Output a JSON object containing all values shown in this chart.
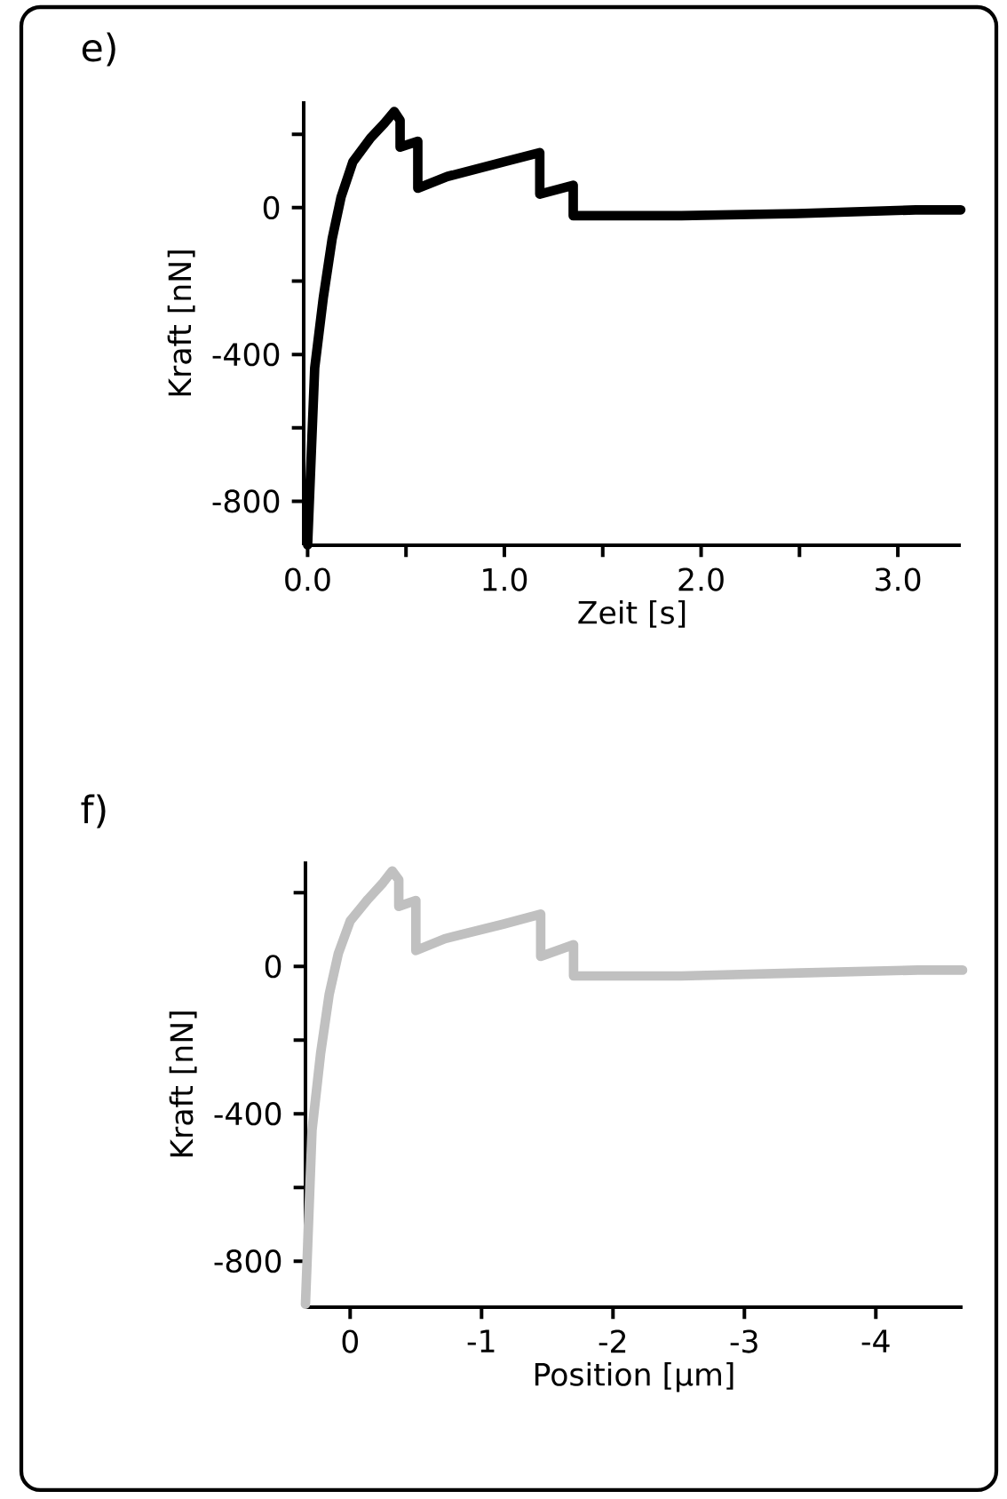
{
  "chart_data": [
    {
      "type": "line",
      "title": "e)",
      "xlabel": "Zeit [s]",
      "ylabel": "Kraft [nN]",
      "xlim": [
        -0.02,
        3.32
      ],
      "ylim": [
        -920,
        290
      ],
      "xticks": [
        {
          "value": 0,
          "label": "0.0"
        },
        {
          "value": 0.5,
          "label": null
        },
        {
          "value": 1,
          "label": "1.0"
        },
        {
          "value": 1.5,
          "label": null
        },
        {
          "value": 2,
          "label": "2.0"
        },
        {
          "value": 2.5,
          "label": null
        },
        {
          "value": 3,
          "label": "3.0"
        }
      ],
      "yticks": [
        {
          "value": 200,
          "label": null
        },
        0,
        {
          "value": -200,
          "label": null
        },
        -400,
        {
          "value": -600,
          "label": null
        },
        -800
      ],
      "series": [
        {
          "color": "#000000",
          "x": [
            0,
            0.036,
            0.08,
            0.125,
            0.17,
            0.23,
            0.32,
            0.39,
            0.44,
            0.47,
            0.47,
            0.56,
            0.56,
            0.71,
            1.0,
            1.18,
            1.18,
            1.35,
            1.35,
            1.9,
            2.49,
            3.09,
            3.32
          ],
          "values": [
            -919,
            -437,
            -244,
            -84,
            29,
            125,
            190,
            230,
            262,
            238,
            165,
            181,
            53,
            85,
            125,
            150,
            37,
            61,
            -22,
            -22,
            -16,
            -6,
            -6
          ]
        }
      ]
    },
    {
      "type": "line",
      "title": "f)",
      "xlabel": "Position [μm]",
      "ylabel": "Kraft [nN]",
      "xlim": [
        0.34,
        -4.66
      ],
      "ylim": [
        -925,
        285
      ],
      "xticks": [
        0,
        -1,
        -2,
        -3,
        -4
      ],
      "yticks": [
        {
          "value": 200,
          "label": null
        },
        0,
        {
          "value": -200,
          "label": null
        },
        -400,
        {
          "value": -600,
          "label": null
        },
        -800
      ],
      "series": [
        {
          "color": "#c0c0c0",
          "x": [
            0.34,
            0.29,
            0.225,
            0.16,
            0.09,
            0,
            -0.135,
            -0.25,
            -0.32,
            -0.37,
            -0.37,
            -0.5,
            -0.5,
            -0.72,
            -1.17,
            -1.45,
            -1.45,
            -1.7,
            -1.7,
            -2.52,
            -3.42,
            -4.32,
            -4.66
          ],
          "values": [
            -917,
            -445,
            -237,
            -77,
            35,
            123,
            182,
            227,
            259,
            235,
            163,
            179,
            43,
            75,
            115,
            142,
            27,
            59,
            -26,
            -26,
            -18,
            -10,
            -10
          ]
        }
      ]
    }
  ]
}
